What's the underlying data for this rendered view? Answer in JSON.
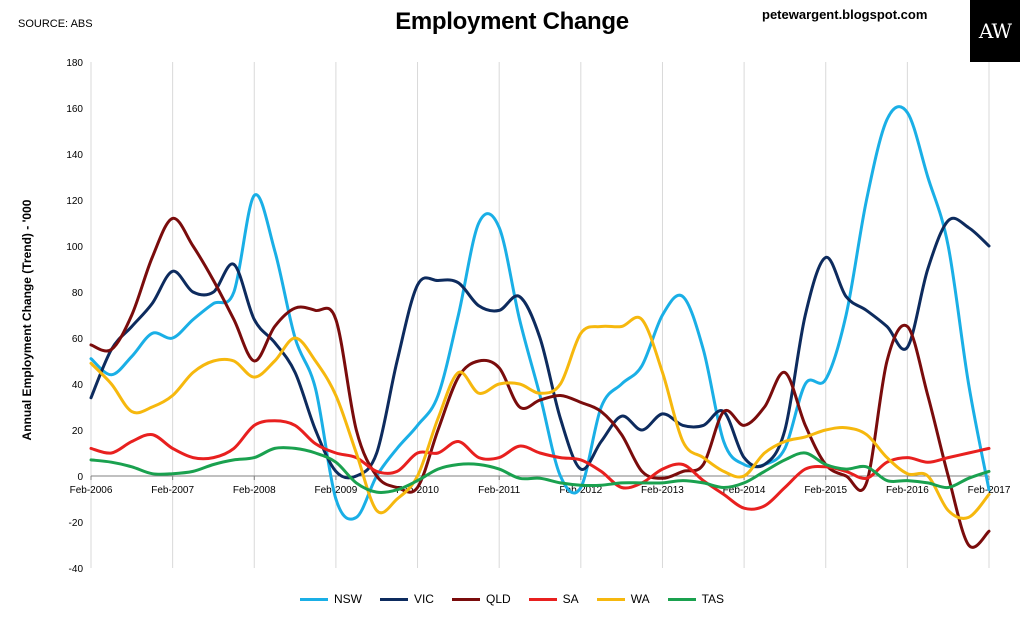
{
  "source_label": "SOURCE: ABS",
  "blog_label": "petewargent.blogspot.com",
  "logo_text": "AW",
  "chart_data": {
    "type": "line",
    "title": "Employment Change",
    "ylabel": "Annual Employment Change (Trend) - '000",
    "xlabel": "",
    "ylim": [
      -40,
      180
    ],
    "yticks": [
      -40,
      -20,
      0,
      20,
      40,
      60,
      80,
      100,
      120,
      140,
      160,
      180
    ],
    "xlim": [
      2006.0,
      2017.0
    ],
    "xtick_labels": [
      "Feb-2006",
      "Feb-2007",
      "Feb-2008",
      "Feb-2009",
      "Feb-2010",
      "Feb-2011",
      "Feb-2012",
      "Feb-2013",
      "Feb-2014",
      "Feb-2015",
      "Feb-2016",
      "Feb-2017"
    ],
    "grid": "vertical",
    "legend": "bottom",
    "series": [
      {
        "name": "NSW",
        "color": "#1aafe6",
        "x": [
          2006.0,
          2006.25,
          2006.5,
          2006.75,
          2007.0,
          2007.25,
          2007.5,
          2007.75,
          2008.0,
          2008.25,
          2008.5,
          2008.75,
          2009.0,
          2009.25,
          2009.5,
          2009.75,
          2010.0,
          2010.25,
          2010.5,
          2010.75,
          2011.0,
          2011.25,
          2011.5,
          2011.75,
          2012.0,
          2012.25,
          2012.5,
          2012.75,
          2013.0,
          2013.25,
          2013.5,
          2013.75,
          2014.0,
          2014.25,
          2014.5,
          2014.75,
          2015.0,
          2015.25,
          2015.5,
          2015.75,
          2016.0,
          2016.25,
          2016.5,
          2016.75,
          2017.0
        ],
        "values": [
          51,
          44,
          52,
          62,
          60,
          68,
          75,
          80,
          122,
          98,
          60,
          38,
          -10,
          -18,
          0,
          12,
          22,
          35,
          70,
          110,
          108,
          68,
          35,
          0,
          -5,
          30,
          40,
          48,
          70,
          78,
          55,
          15,
          5,
          5,
          12,
          40,
          42,
          70,
          120,
          155,
          158,
          130,
          100,
          40,
          -6
        ]
      },
      {
        "name": "VIC",
        "color": "#0d2b5e",
        "x": [
          2006.0,
          2006.25,
          2006.5,
          2006.75,
          2007.0,
          2007.25,
          2007.5,
          2007.75,
          2008.0,
          2008.25,
          2008.5,
          2008.75,
          2009.0,
          2009.25,
          2009.5,
          2009.75,
          2010.0,
          2010.25,
          2010.5,
          2010.75,
          2011.0,
          2011.25,
          2011.5,
          2011.75,
          2012.0,
          2012.25,
          2012.5,
          2012.75,
          2013.0,
          2013.25,
          2013.5,
          2013.75,
          2014.0,
          2014.25,
          2014.5,
          2014.75,
          2015.0,
          2015.25,
          2015.5,
          2015.75,
          2016.0,
          2016.25,
          2016.5,
          2016.75,
          2017.0
        ],
        "values": [
          34,
          55,
          65,
          75,
          89,
          80,
          80,
          92,
          68,
          58,
          45,
          20,
          2,
          0,
          10,
          50,
          83,
          85,
          84,
          74,
          72,
          78,
          60,
          25,
          3,
          15,
          26,
          20,
          27,
          22,
          22,
          28,
          8,
          5,
          20,
          70,
          95,
          78,
          72,
          65,
          56,
          90,
          111,
          108,
          100
        ]
      },
      {
        "name": "QLD",
        "color": "#7a0c0c",
        "x": [
          2006.0,
          2006.25,
          2006.5,
          2006.75,
          2007.0,
          2007.25,
          2007.5,
          2007.75,
          2008.0,
          2008.25,
          2008.5,
          2008.75,
          2009.0,
          2009.25,
          2009.5,
          2009.75,
          2010.0,
          2010.25,
          2010.5,
          2010.75,
          2011.0,
          2011.25,
          2011.5,
          2011.75,
          2012.0,
          2012.25,
          2012.5,
          2012.75,
          2013.0,
          2013.25,
          2013.5,
          2013.75,
          2014.0,
          2014.25,
          2014.5,
          2014.75,
          2015.0,
          2015.25,
          2015.5,
          2015.75,
          2016.0,
          2016.25,
          2016.5,
          2016.75,
          2017.0
        ],
        "values": [
          57,
          55,
          70,
          95,
          112,
          100,
          85,
          68,
          50,
          65,
          73,
          72,
          68,
          20,
          0,
          -5,
          -5,
          20,
          43,
          50,
          47,
          30,
          33,
          35,
          32,
          28,
          18,
          2,
          -1,
          2,
          5,
          28,
          22,
          30,
          45,
          22,
          5,
          0,
          -3,
          50,
          65,
          35,
          0,
          -30,
          -24
        ]
      },
      {
        "name": "SA",
        "color": "#e8201f",
        "x": [
          2006.0,
          2006.25,
          2006.5,
          2006.75,
          2007.0,
          2007.25,
          2007.5,
          2007.75,
          2008.0,
          2008.25,
          2008.5,
          2008.75,
          2009.0,
          2009.25,
          2009.5,
          2009.75,
          2010.0,
          2010.25,
          2010.5,
          2010.75,
          2011.0,
          2011.25,
          2011.5,
          2011.75,
          2012.0,
          2012.25,
          2012.5,
          2012.75,
          2013.0,
          2013.25,
          2013.5,
          2013.75,
          2014.0,
          2014.25,
          2014.5,
          2014.75,
          2015.0,
          2015.25,
          2015.5,
          2015.75,
          2016.0,
          2016.25,
          2016.5,
          2016.75,
          2017.0
        ],
        "values": [
          12,
          10,
          15,
          18,
          12,
          8,
          8,
          12,
          22,
          24,
          22,
          14,
          10,
          8,
          2,
          2,
          10,
          10,
          15,
          8,
          8,
          13,
          10,
          8,
          7,
          2,
          -5,
          -3,
          3,
          5,
          -2,
          -8,
          -14,
          -13,
          -5,
          3,
          4,
          2,
          -1,
          6,
          8,
          6,
          8,
          10,
          12
        ]
      },
      {
        "name": "WA",
        "color": "#f6b80e",
        "x": [
          2006.0,
          2006.25,
          2006.5,
          2006.75,
          2007.0,
          2007.25,
          2007.5,
          2007.75,
          2008.0,
          2008.25,
          2008.5,
          2008.75,
          2009.0,
          2009.25,
          2009.5,
          2009.75,
          2010.0,
          2010.25,
          2010.5,
          2010.75,
          2011.0,
          2011.25,
          2011.5,
          2011.75,
          2012.0,
          2012.25,
          2012.5,
          2012.75,
          2013.0,
          2013.25,
          2013.5,
          2013.75,
          2014.0,
          2014.25,
          2014.5,
          2014.75,
          2015.0,
          2015.25,
          2015.5,
          2015.75,
          2016.0,
          2016.25,
          2016.5,
          2016.75,
          2017.0
        ],
        "values": [
          49,
          40,
          28,
          30,
          35,
          45,
          50,
          50,
          43,
          50,
          60,
          50,
          35,
          10,
          -15,
          -10,
          0,
          25,
          45,
          36,
          40,
          40,
          36,
          40,
          62,
          65,
          65,
          68,
          45,
          15,
          8,
          2,
          0,
          10,
          15,
          17,
          20,
          21,
          18,
          8,
          1,
          0,
          -15,
          -18,
          -8
        ]
      },
      {
        "name": "TAS",
        "color": "#1aa14f",
        "x": [
          2006.0,
          2006.25,
          2006.5,
          2006.75,
          2007.0,
          2007.25,
          2007.5,
          2007.75,
          2008.0,
          2008.25,
          2008.5,
          2008.75,
          2009.0,
          2009.25,
          2009.5,
          2009.75,
          2010.0,
          2010.25,
          2010.5,
          2010.75,
          2011.0,
          2011.25,
          2011.5,
          2011.75,
          2012.0,
          2012.25,
          2012.5,
          2012.75,
          2013.0,
          2013.25,
          2013.5,
          2013.75,
          2014.0,
          2014.25,
          2014.5,
          2014.75,
          2015.0,
          2015.25,
          2015.5,
          2015.75,
          2016.0,
          2016.25,
          2016.5,
          2016.75,
          2017.0
        ],
        "values": [
          7,
          6,
          4,
          1,
          1,
          2,
          5,
          7,
          8,
          12,
          12,
          10,
          6,
          -3,
          -7,
          -6,
          -2,
          3,
          5,
          5,
          3,
          -1,
          -1,
          -3,
          -4,
          -4,
          -3,
          -3,
          -3,
          -2,
          -3,
          -5,
          -3,
          2,
          7,
          10,
          5,
          3,
          4,
          -2,
          -2,
          -3,
          -5,
          -1,
          2
        ]
      }
    ]
  }
}
